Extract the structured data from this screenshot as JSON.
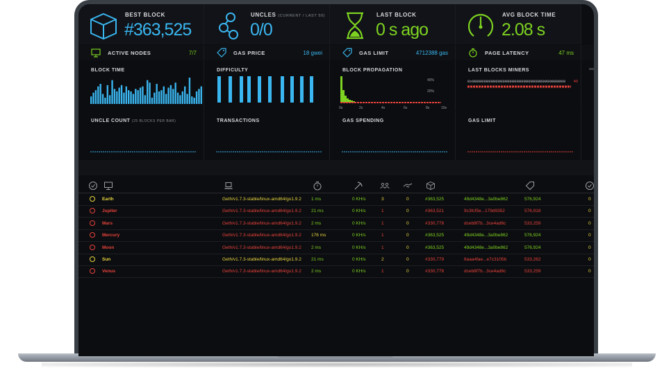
{
  "stats": {
    "best_block": {
      "label": "BEST BLOCK",
      "value": "#363,525",
      "color": "#3ab6f0"
    },
    "uncles": {
      "label": "UNCLES",
      "sub": "(CURRENT / LAST 50)",
      "value": "0/0",
      "color": "#3ab6f0"
    },
    "last_block": {
      "label": "LAST BLOCK",
      "value": "0 s ago",
      "color": "#7ed321"
    },
    "avg_block_time": {
      "label": "AVG BLOCK TIME",
      "value": "2.08 s",
      "color": "#7ed321"
    }
  },
  "info": {
    "active_nodes": {
      "label": "ACTIVE NODES",
      "value": "7/7",
      "color": "#7ed321"
    },
    "gas_price": {
      "label": "GAS PRICE",
      "value": "18 gwei",
      "color": "#3ab6f0"
    },
    "gas_limit": {
      "label": "GAS LIMIT",
      "value": "4712388 gas",
      "color": "#3ab6f0"
    },
    "page_latency": {
      "label": "PAGE LATENCY",
      "value": "47 ms",
      "color": "#7ed321"
    }
  },
  "charts": {
    "block_time": {
      "title": "BLOCK TIME",
      "values": [
        6,
        9,
        11,
        14,
        16,
        8,
        5,
        15,
        7,
        19,
        12,
        10,
        13,
        15,
        9,
        14,
        11,
        10,
        8,
        12,
        11,
        13,
        14,
        7,
        19,
        17,
        5,
        9,
        16,
        10,
        11,
        14,
        8,
        13,
        15,
        12,
        17,
        9,
        7,
        10,
        14,
        8,
        21,
        6,
        5,
        10,
        12,
        14
      ]
    },
    "difficulty": {
      "title": "DIFFICULTY"
    },
    "block_propagation": {
      "title": "BLOCK PROPAGATION",
      "y_ticks": [
        "40%",
        "20%"
      ],
      "x_ticks": [
        "0s",
        "2s",
        "4s",
        "6s",
        "8s",
        "10s"
      ]
    },
    "last_blocks_miners": {
      "title": "LAST BLOCKS MINERS",
      "miner": "0x0000000000000000000000000000000000000000",
      "count": "40"
    },
    "uncle_count": {
      "title": "UNCLE COUNT",
      "sub": "(25 BLOCKS PER BAR)"
    },
    "transactions": {
      "title": "TRANSACTIONS"
    },
    "gas_spending": {
      "title": "GAS SPENDING"
    },
    "gas_limit": {
      "title": "GAS LIMIT"
    }
  },
  "table": {
    "columns_icons": [
      "check-circle-icon",
      "monitor-icon",
      "laptop-icon",
      "clock-icon",
      "pickaxe-icon",
      "peers-icon",
      "handshake-icon",
      "cube-icon",
      "tag-icon",
      "check-circle-icon"
    ],
    "rows": [
      {
        "name": "Earth",
        "client": "Geth/v1.7.3-stable/linux-amd64/go1.9.2",
        "latency": "1 ms",
        "hashrate": "0 KH/s",
        "peers": "3",
        "pending": "0",
        "block": "#363,525",
        "hash": "49d4348e...3a0be862",
        "diff": "576,924",
        "uptime": "0",
        "color": "#e8d640",
        "latency_color": "#7ed321",
        "block_color": "#7ed321"
      },
      {
        "name": "Jupiter",
        "client": "Geth/v1.7.3-stable/linux-amd64/go1.9.2",
        "latency": "21 ms",
        "hashrate": "0 KH/s",
        "peers": "1",
        "pending": "0",
        "block": "#363,521",
        "hash": "9c3fcf5e...179d9352",
        "diff": "576,918",
        "uptime": "0",
        "color": "#e8433c",
        "latency_color": "#7ed321",
        "block_color": "#e8433c"
      },
      {
        "name": "Mars",
        "client": "Geth/v1.7.3-stable/linux-amd64/go1.9.2",
        "latency": "2 ms",
        "hashrate": "0 KH/s",
        "peers": "1",
        "pending": "0",
        "block": "#330,778",
        "hash": "dceb8f7b...3ce4ad6c",
        "diff": "533,259",
        "uptime": "0",
        "color": "#e8433c",
        "latency_color": "#7ed321",
        "block_color": "#e8433c"
      },
      {
        "name": "Mercury",
        "client": "Geth/v1.7.3-stable/linux-amd64/go1.9.2",
        "latency": "176 ms",
        "hashrate": "0 KH/s",
        "peers": "1",
        "pending": "0",
        "block": "#363,525",
        "hash": "49d4348e...3a0be862",
        "diff": "576,924",
        "uptime": "0",
        "color": "#e8433c",
        "latency_color": "#e8d640",
        "block_color": "#7ed321"
      },
      {
        "name": "Moon",
        "client": "Geth/v1.7.3-stable/linux-amd64/go1.9.2",
        "latency": "2 ms",
        "hashrate": "0 KH/s",
        "peers": "1",
        "pending": "0",
        "block": "#363,525",
        "hash": "49d4348e...3a0be862",
        "diff": "576,924",
        "uptime": "0",
        "color": "#e8433c",
        "latency_color": "#7ed321",
        "block_color": "#7ed321"
      },
      {
        "name": "Sun",
        "client": "Geth/v1.7.3-stable/linux-amd64/go1.9.2",
        "latency": "21 ms",
        "hashrate": "0 KH/s",
        "peers": "2",
        "pending": "0",
        "block": "#330,779",
        "hash": "6aaa4fae...e7c3105b",
        "diff": "533,262",
        "uptime": "0",
        "color": "#e8d640",
        "latency_color": "#7ed321",
        "block_color": "#e8433c"
      },
      {
        "name": "Venus",
        "client": "Geth/v1.7.3-stable/linux-amd64/go1.9.2",
        "latency": "2 ms",
        "hashrate": "0 KH/s",
        "peers": "1",
        "pending": "0",
        "block": "#330,778",
        "hash": "dceb8f7b...3ce4ad6c",
        "diff": "533,259",
        "uptime": "0",
        "color": "#e8433c",
        "latency_color": "#7ed321",
        "block_color": "#e8433c"
      }
    ]
  }
}
